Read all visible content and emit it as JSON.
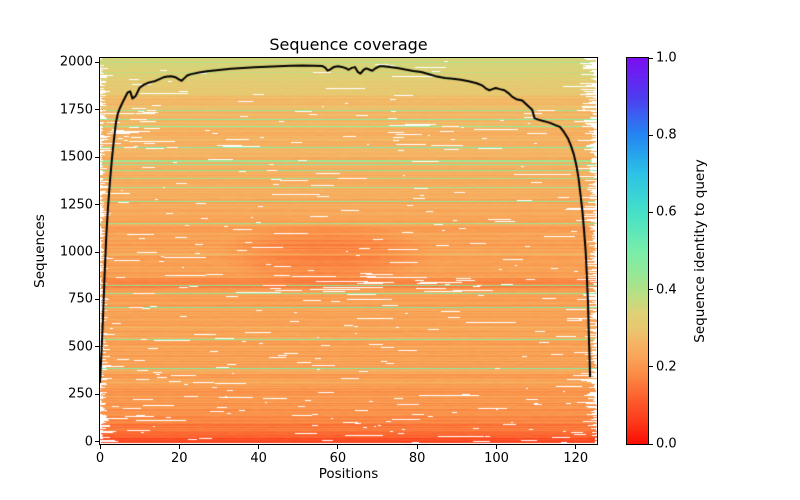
{
  "chart_data": {
    "type": "heatmap",
    "title": "Sequence coverage",
    "xlabel": "Positions",
    "ylabel": "Sequences",
    "xlim": [
      0,
      125.35
    ],
    "ylim": [
      -12,
      2023
    ],
    "grid": false,
    "x_ticks": [
      {
        "v": 0,
        "label": "0"
      },
      {
        "v": 20,
        "label": "20"
      },
      {
        "v": 40,
        "label": "40"
      },
      {
        "v": 60,
        "label": "60"
      },
      {
        "v": 80,
        "label": "80"
      },
      {
        "v": 100,
        "label": "100"
      },
      {
        "v": 120,
        "label": "120"
      }
    ],
    "y_ticks": [
      {
        "v": 0,
        "label": "0"
      },
      {
        "v": 250,
        "label": "250"
      },
      {
        "v": 500,
        "label": "500"
      },
      {
        "v": 750,
        "label": "750"
      },
      {
        "v": 1000,
        "label": "1000"
      },
      {
        "v": 1250,
        "label": "1250"
      },
      {
        "v": 1500,
        "label": "1500"
      },
      {
        "v": 1750,
        "label": "1750"
      },
      {
        "v": 2000,
        "label": "2000"
      }
    ],
    "colorbar": {
      "label": "Sequence identity to query",
      "lim": [
        0,
        1
      ],
      "ticks": [
        {
          "v": 0.0,
          "label": "0.0"
        },
        {
          "v": 0.2,
          "label": "0.2"
        },
        {
          "v": 0.4,
          "label": "0.4"
        },
        {
          "v": 0.6,
          "label": "0.6"
        },
        {
          "v": 0.8,
          "label": "0.8"
        },
        {
          "v": 1.0,
          "label": "1.0"
        }
      ]
    },
    "colormap_stops": [
      [
        0.0,
        250,
        15,
        5
      ],
      [
        0.06,
        252,
        60,
        28
      ],
      [
        0.12,
        252,
        97,
        46
      ],
      [
        0.18,
        250,
        140,
        70
      ],
      [
        0.22,
        249,
        163,
        87
      ],
      [
        0.26,
        245,
        180,
        100
      ],
      [
        0.3,
        232,
        200,
        112
      ],
      [
        0.34,
        222,
        209,
        118
      ],
      [
        0.38,
        190,
        222,
        130
      ],
      [
        0.44,
        150,
        232,
        150
      ],
      [
        0.5,
        120,
        238,
        170
      ],
      [
        0.6,
        70,
        225,
        200
      ],
      [
        0.7,
        45,
        195,
        230
      ],
      [
        0.8,
        35,
        135,
        242
      ],
      [
        0.9,
        80,
        60,
        240
      ],
      [
        1.0,
        123,
        15,
        242
      ]
    ],
    "line_color": "#000000",
    "coverage_line": [
      [
        0,
        310
      ],
      [
        0.4,
        480
      ],
      [
        0.8,
        680
      ],
      [
        1.2,
        900
      ],
      [
        1.6,
        1090
      ],
      [
        2,
        1230
      ],
      [
        2.5,
        1370
      ],
      [
        3,
        1490
      ],
      [
        3.5,
        1590
      ],
      [
        4,
        1680
      ],
      [
        4.5,
        1730
      ],
      [
        5,
        1758
      ],
      [
        6,
        1802
      ],
      [
        7,
        1842
      ],
      [
        7.6,
        1847
      ],
      [
        8.2,
        1809
      ],
      [
        9,
        1823
      ],
      [
        10,
        1866
      ],
      [
        11,
        1881
      ],
      [
        12,
        1891
      ],
      [
        13,
        1897
      ],
      [
        14,
        1902
      ],
      [
        15,
        1912
      ],
      [
        16,
        1921
      ],
      [
        17,
        1925
      ],
      [
        18,
        1927
      ],
      [
        19,
        1922
      ],
      [
        20,
        1909
      ],
      [
        20.6,
        1903
      ],
      [
        21.3,
        1917
      ],
      [
        22,
        1931
      ],
      [
        23,
        1938
      ],
      [
        25,
        1946
      ],
      [
        27,
        1953
      ],
      [
        30,
        1960
      ],
      [
        33,
        1966
      ],
      [
        36,
        1970
      ],
      [
        39,
        1974
      ],
      [
        42,
        1977
      ],
      [
        45,
        1980
      ],
      [
        48,
        1982
      ],
      [
        51,
        1983
      ],
      [
        54,
        1982
      ],
      [
        56,
        1981
      ],
      [
        56.8,
        1972
      ],
      [
        57.4,
        1956
      ],
      [
        58,
        1962
      ],
      [
        59,
        1976
      ],
      [
        60,
        1979
      ],
      [
        61,
        1976
      ],
      [
        62,
        1969
      ],
      [
        62.7,
        1961
      ],
      [
        63.5,
        1971
      ],
      [
        64.3,
        1975
      ],
      [
        65,
        1950
      ],
      [
        65.7,
        1941
      ],
      [
        66.5,
        1961
      ],
      [
        67.2,
        1968
      ],
      [
        68,
        1961
      ],
      [
        68.7,
        1956
      ],
      [
        69.5,
        1969
      ],
      [
        70.5,
        1979
      ],
      [
        71.5,
        1980
      ],
      [
        73,
        1976
      ],
      [
        75,
        1970
      ],
      [
        77,
        1962
      ],
      [
        79,
        1955
      ],
      [
        81,
        1949
      ],
      [
        83,
        1937
      ],
      [
        85,
        1925
      ],
      [
        87,
        1917
      ],
      [
        89,
        1913
      ],
      [
        91,
        1908
      ],
      [
        93,
        1900
      ],
      [
        95,
        1890
      ],
      [
        96.5,
        1877
      ],
      [
        97.5,
        1860
      ],
      [
        98.2,
        1853
      ],
      [
        99,
        1859
      ],
      [
        99.8,
        1865
      ],
      [
        100.8,
        1859
      ],
      [
        102,
        1853
      ],
      [
        103,
        1838
      ],
      [
        104,
        1818
      ],
      [
        105,
        1806
      ],
      [
        106.5,
        1799
      ],
      [
        107.5,
        1779
      ],
      [
        109,
        1750
      ],
      [
        109.6,
        1706
      ],
      [
        110.5,
        1698
      ],
      [
        112,
        1690
      ],
      [
        113.5,
        1681
      ],
      [
        115,
        1668
      ],
      [
        116,
        1660
      ],
      [
        117,
        1633
      ],
      [
        118,
        1600
      ],
      [
        118.8,
        1560
      ],
      [
        119.5,
        1515
      ],
      [
        120.1,
        1462
      ],
      [
        120.7,
        1390
      ],
      [
        121.2,
        1300
      ],
      [
        121.7,
        1210
      ],
      [
        122.1,
        1110
      ],
      [
        122.5,
        1000
      ],
      [
        122.8,
        870
      ],
      [
        123.1,
        720
      ],
      [
        123.3,
        560
      ],
      [
        123.5,
        420
      ],
      [
        123.6,
        340
      ]
    ],
    "heatmap": {
      "seed": 20240229,
      "n_sequences": 2016,
      "identity_profile": [
        [
          0,
          0.07
        ],
        [
          15,
          0.09
        ],
        [
          40,
          0.13
        ],
        [
          90,
          0.16
        ],
        [
          150,
          0.19
        ],
        [
          300,
          0.21
        ],
        [
          500,
          0.22
        ],
        [
          700,
          0.225
        ],
        [
          790,
          0.21
        ],
        [
          815,
          0.17
        ],
        [
          850,
          0.17
        ],
        [
          870,
          0.21
        ],
        [
          1000,
          0.215
        ],
        [
          1150,
          0.225
        ],
        [
          1300,
          0.24
        ],
        [
          1500,
          0.25
        ],
        [
          1650,
          0.255
        ],
        [
          1750,
          0.27
        ],
        [
          1830,
          0.29
        ],
        [
          1880,
          0.31
        ],
        [
          1930,
          0.33
        ],
        [
          1970,
          0.34
        ],
        [
          2020,
          0.35
        ]
      ],
      "green_rows": [
        388,
        540,
        710,
        1265,
        1340,
        1390,
        1430,
        1460,
        1480,
        1550,
        1660,
        1700
      ],
      "dark_blob": {
        "p_center": 57,
        "s_center": 990,
        "p_radius": 27,
        "s_radius": 175,
        "delta": -0.05
      },
      "gap_band_low": [
        790,
        885
      ],
      "gap_band_left": [
        1540,
        1760
      ]
    }
  }
}
